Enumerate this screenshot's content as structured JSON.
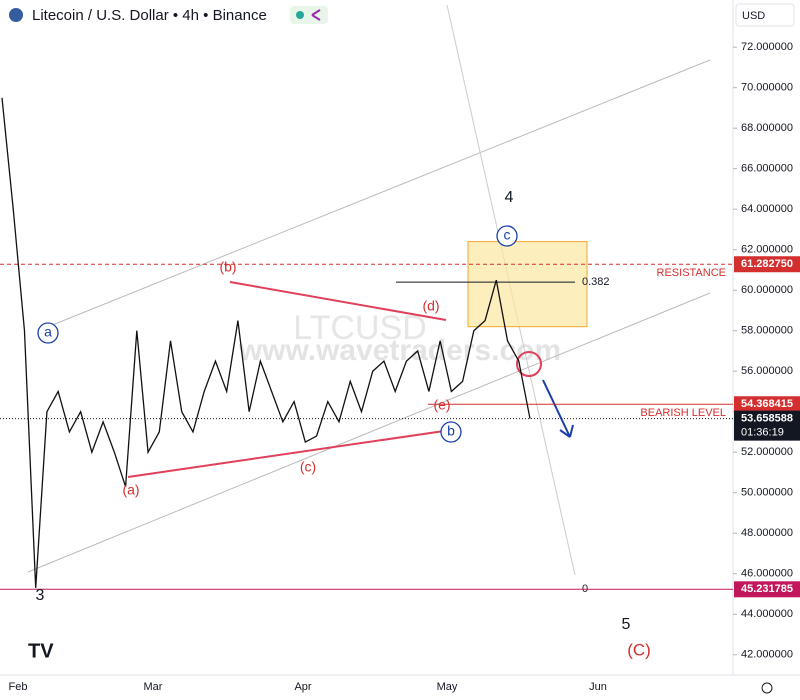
{
  "chart_data": {
    "type": "line",
    "title": "Litecoin / U.S. Dollar • 4h • Binance",
    "currency": "USD",
    "watermark": [
      "LTCUSD",
      "www.wavetraders.com"
    ],
    "color": "#111111",
    "values": [
      69.5,
      64,
      58,
      45.3,
      54,
      55,
      53,
      54,
      52,
      53.5,
      52,
      50.3,
      58,
      52,
      53,
      57.5,
      54,
      53,
      55,
      56.5,
      55,
      58.5,
      54,
      56.5,
      55,
      53.5,
      54.5,
      52.5,
      52.8,
      54.5,
      53.5,
      55.5,
      54,
      56,
      56.5,
      55,
      56.5,
      57,
      55,
      57.5,
      55,
      55.5,
      58,
      58.5,
      60.5,
      57.5,
      56.5,
      53.658588
    ],
    "x_labels": [
      "Feb",
      "Mar",
      "Apr",
      "May",
      "Jun"
    ],
    "ylim": [
      41,
      74.33
    ],
    "yticks": [
      {
        "value": 42,
        "label": "42.000000"
      },
      {
        "value": 44,
        "label": "44.000000"
      },
      {
        "value": 46,
        "label": "46.000000"
      },
      {
        "value": 48,
        "label": "48.000000"
      },
      {
        "value": 50,
        "label": "50.000000"
      },
      {
        "value": 52,
        "label": "52.000000"
      },
      {
        "value": 54,
        "label": "54.000000"
      },
      {
        "value": 56,
        "label": "56.000000"
      },
      {
        "value": 58,
        "label": "58.000000"
      },
      {
        "value": 60,
        "label": "60.000000"
      },
      {
        "value": 62,
        "label": "62.000000"
      },
      {
        "value": 64,
        "label": "64.000000"
      },
      {
        "value": 66,
        "label": "66.000000"
      },
      {
        "value": 68,
        "label": "68.000000"
      },
      {
        "value": 70,
        "label": "70.000000"
      },
      {
        "value": 72,
        "label": "72.000000"
      }
    ],
    "levels": [
      {
        "value": 61.28275,
        "label": "61.282750",
        "caption": "RESISTANCE",
        "color": "#d32f2f"
      },
      {
        "value": 54.368415,
        "label": "54.368415",
        "caption": "BEARISH LEVEL",
        "color": "#d32f2f"
      },
      {
        "value": 45.231785,
        "label": "45.231785",
        "color": "#c2185b"
      }
    ],
    "last": {
      "value": 53.658588,
      "label": "53.658588",
      "countdown": "01:36:19",
      "color": "#131722"
    },
    "zone": {
      "top": 62.4,
      "bottom": 58.2,
      "color": "#fbe7a1"
    },
    "fib_levels": [
      {
        "ratio": 0.382,
        "price": 60.4
      },
      {
        "ratio": 0,
        "price": 45.231785
      }
    ],
    "wave_labels": [
      "a",
      "c",
      "b",
      "(a)",
      "(b)",
      "(c)",
      "(d)",
      "(e)",
      "3",
      "4",
      "5",
      "(C)"
    ]
  }
}
